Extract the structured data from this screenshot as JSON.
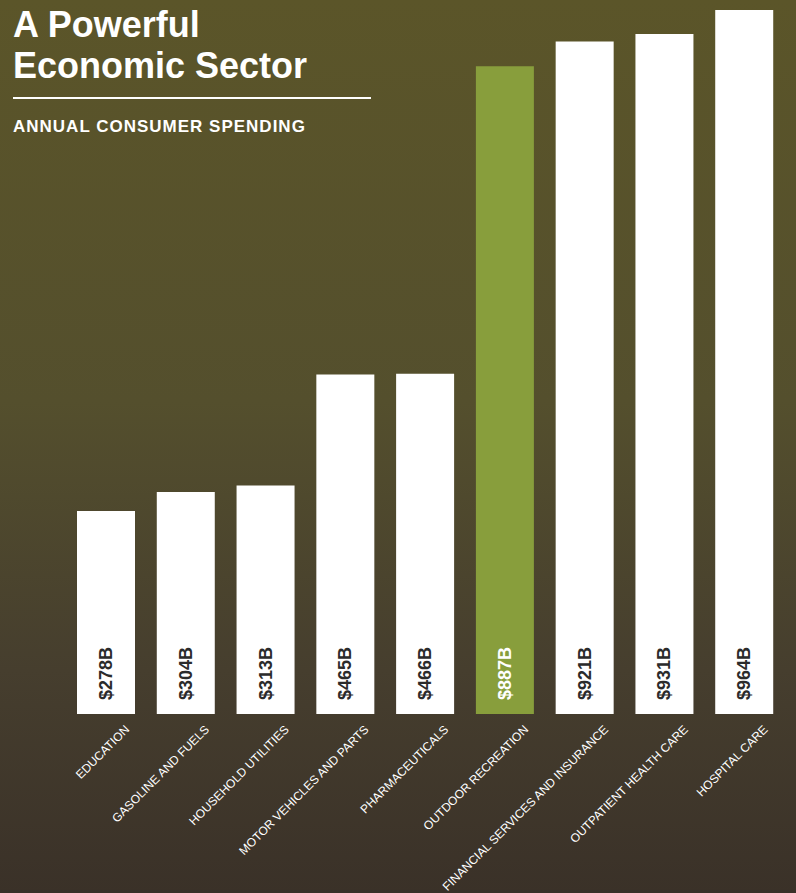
{
  "chart_data": {
    "type": "bar",
    "title": "A Powerful Economic Sector",
    "subtitle": "ANNUAL CONSUMER SPENDING",
    "categories": [
      "EDUCATION",
      "GASOLINE AND FUELS",
      "HOUSEHOLD UTILITIES",
      "MOTOR VEHICLES AND PARTS",
      "PHARMACEUTICALS",
      "OUTDOOR RECREATION",
      "FINANCIAL SERVICES AND INSURANCE",
      "OUTPATIENT HEALTH CARE",
      "HOSPITAL CARE"
    ],
    "values": [
      278,
      304,
      313,
      465,
      466,
      887,
      921,
      931,
      964
    ],
    "value_labels": [
      "$278B",
      "$304B",
      "$313B",
      "$465B",
      "$466B",
      "$887B",
      "$921B",
      "$931B",
      "$964B"
    ],
    "colors": [
      "#ffffff",
      "#ffffff",
      "#ffffff",
      "#ffffff",
      "#ffffff",
      "#889e3c",
      "#ffffff",
      "#ffffff",
      "#ffffff"
    ],
    "data_labels": true,
    "tick_labels": "x",
    "grid": false
  }
}
